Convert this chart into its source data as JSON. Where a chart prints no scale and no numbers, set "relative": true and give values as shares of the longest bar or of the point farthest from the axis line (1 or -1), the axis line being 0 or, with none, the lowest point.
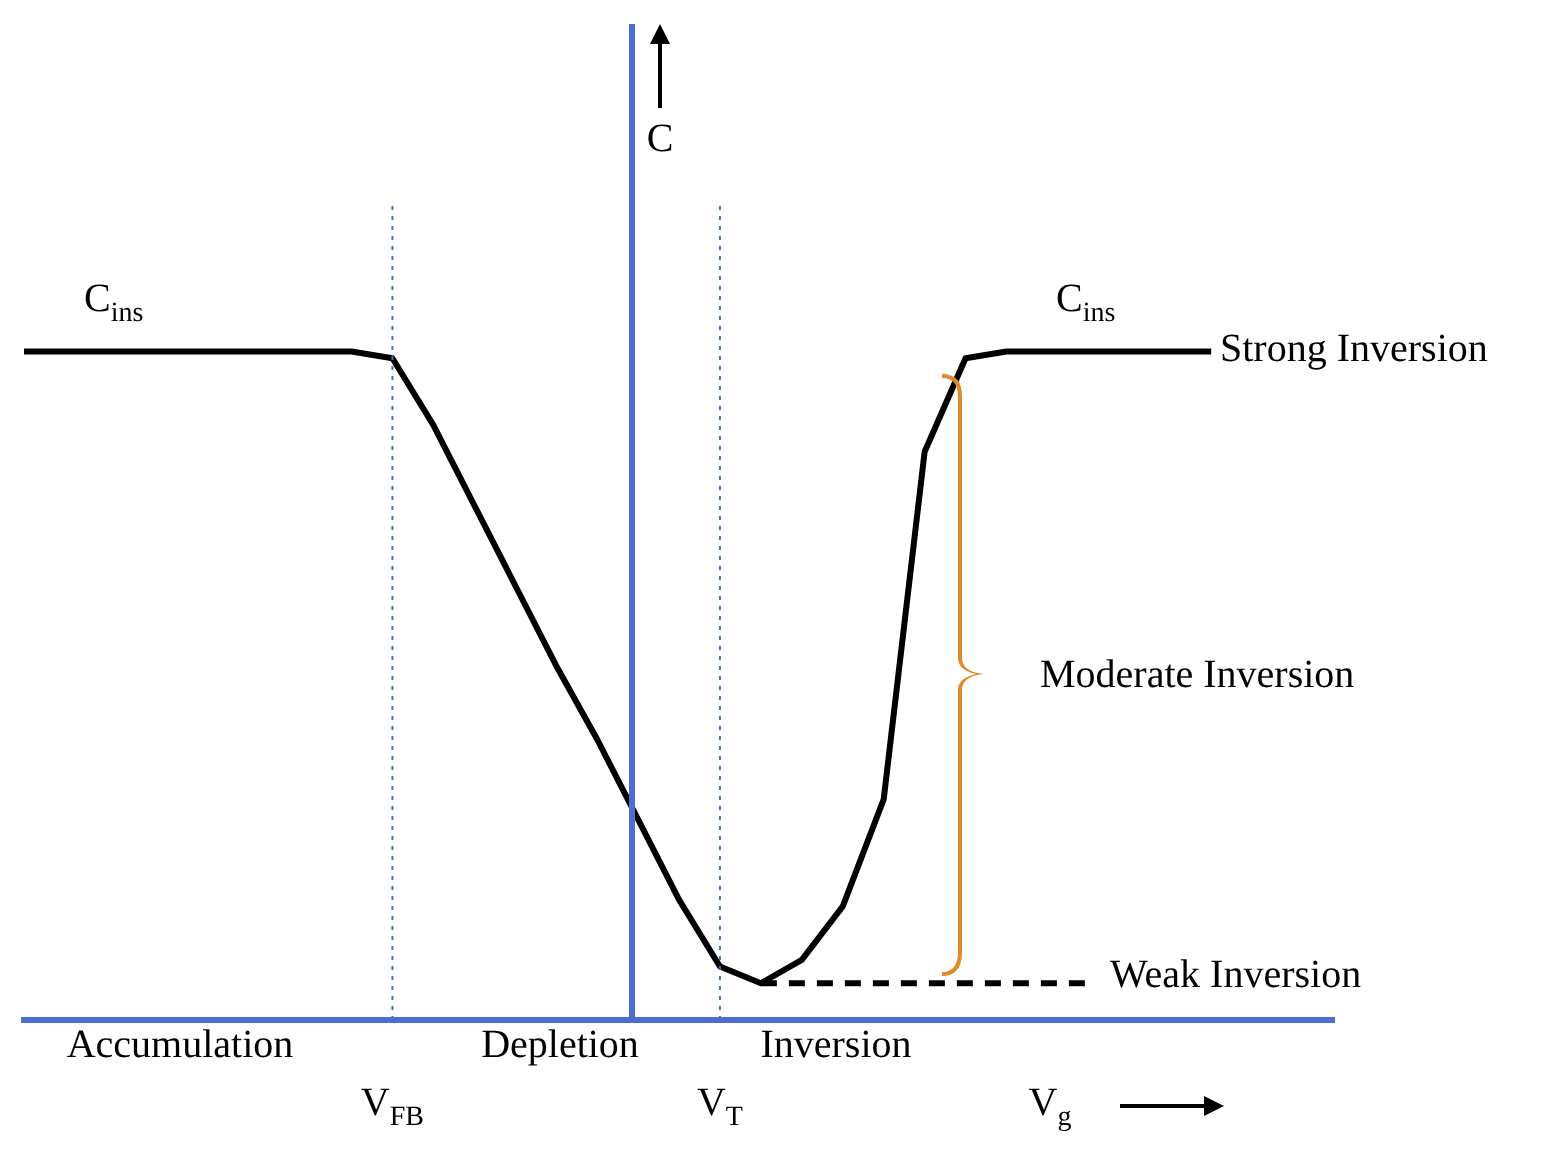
{
  "chart_data": {
    "type": "line",
    "relative": true,
    "xlabel": "V$_{g}$",
    "ylabel": "C",
    "legend": false,
    "grid": false,
    "marker": "none",
    "line_style": "solid",
    "categories": [
      null,
      null,
      null,
      null,
      null,
      null,
      null,
      null,
      null,
      "V$_{FB}$",
      null,
      null,
      null,
      null,
      null,
      null,
      null,
      "V$_{T}$",
      null,
      null,
      null,
      null,
      null,
      null,
      null,
      null,
      null,
      null,
      null,
      null,
      null,
      null,
      null
    ],
    "series": [
      {
        "color": "#000000",
        "values": [
          1,
          1,
          1,
          1,
          1,
          1,
          1,
          1,
          1,
          0.99,
          0.89,
          0.77,
          0.65,
          0.53,
          0.42,
          0.3,
          0.18,
          0.08,
          0.055,
          0.09,
          0.17,
          0.33,
          0.85,
          0.99,
          1,
          1,
          1,
          1,
          1,
          1,
          null,
          null,
          null
        ]
      },
      {
        "type": "line",
        "color": "#000000",
        "line_style": "dashed",
        "values": [
          null,
          null,
          null,
          null,
          null,
          null,
          null,
          null,
          null,
          null,
          null,
          null,
          null,
          null,
          null,
          null,
          null,
          null,
          0.055,
          0.055,
          0.055,
          0.055,
          0.055,
          0.055,
          0.055,
          0.055,
          0.055,
          null,
          null,
          null,
          null,
          null,
          null
        ]
      }
    ],
    "ref_lines": [
      {
        "axis": "x",
        "value": "V$_{FB}$",
        "color": "#4472c4",
        "line_style": "dotted"
      },
      {
        "axis": "x",
        "value": "V$_{T}$",
        "color": "#4472c4",
        "line_style": "dotted"
      }
    ],
    "annotations": [
      "C$_{ins}$",
      "C$_{ins}$",
      "Strong Inversion",
      "Weak Inversion",
      "Accumulation",
      "Depletion",
      "Inversion",
      "Moderate Inversion"
    ]
  }
}
